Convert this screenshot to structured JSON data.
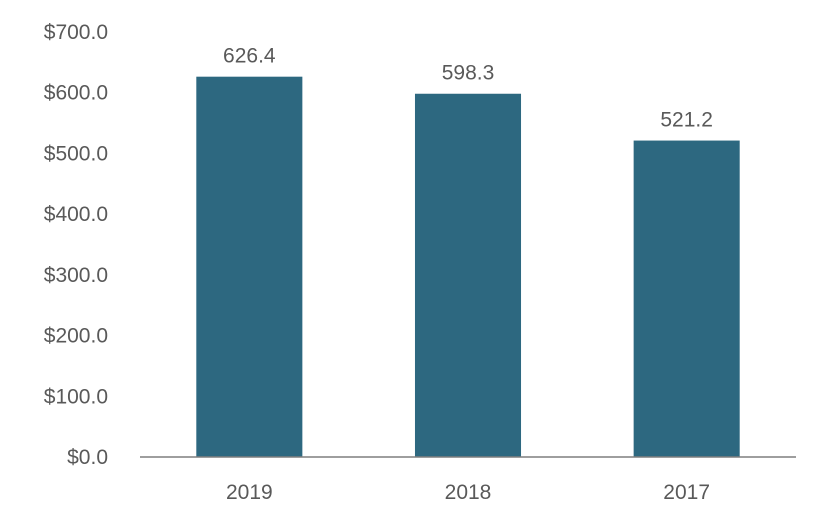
{
  "chart_data": {
    "type": "bar",
    "categories": [
      "2019",
      "2018",
      "2017"
    ],
    "values": [
      626.4,
      598.3,
      521.2
    ],
    "data_labels": [
      "626.4",
      "598.3",
      "521.2"
    ],
    "y_ticks": [
      "$0.0",
      "$100.0",
      "$200.0",
      "$300.0",
      "$400.0",
      "$500.0",
      "$600.0",
      "$700.0"
    ],
    "ylim": [
      0,
      700
    ],
    "grid": false,
    "legend": "none",
    "bar_color": "#2D6880",
    "axis_color": "#7F7F7F"
  }
}
